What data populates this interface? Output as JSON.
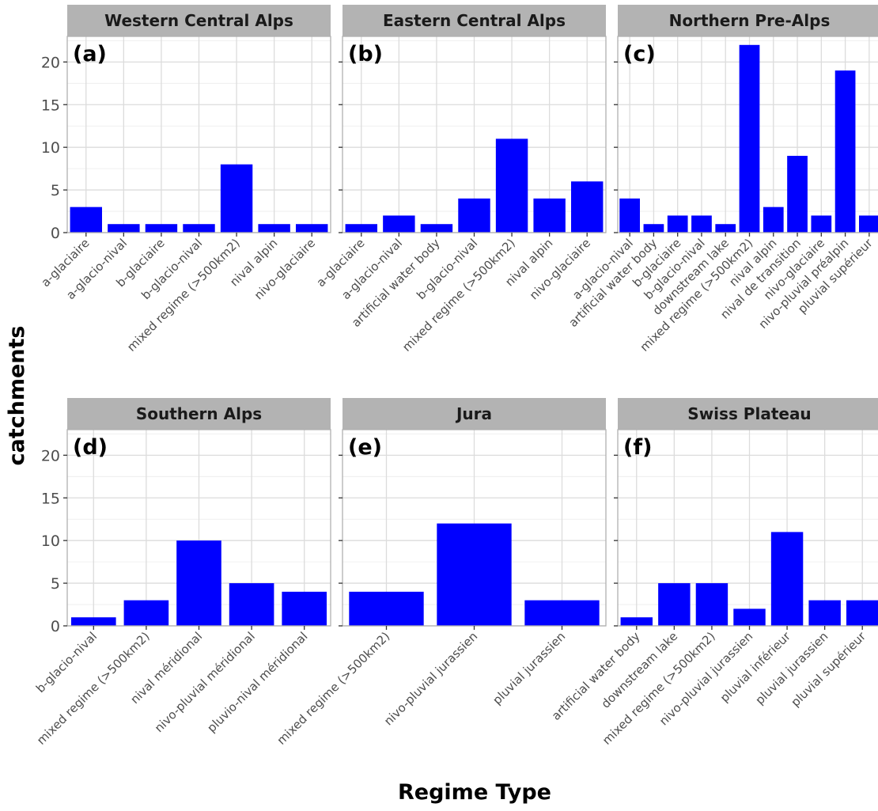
{
  "figure": {
    "ylabel": "catchments",
    "xlabel": "Regime Type"
  },
  "chart_data": [
    {
      "type": "bar",
      "title": "Western Central Alps",
      "panel_label": "(a)",
      "categories": [
        "a-glaciaire",
        "a-glacio-nival",
        "b-glaciaire",
        "b-glacio-nival",
        "mixed regime (>500km2)",
        "nival alpin",
        "nivo-glaciaire"
      ],
      "values": [
        3,
        1,
        1,
        1,
        8,
        1,
        1
      ],
      "ylim": [
        0,
        23
      ],
      "yticks": [
        0,
        5,
        10,
        15,
        20
      ],
      "grid": true,
      "color": "#0000ff"
    },
    {
      "type": "bar",
      "title": "Eastern Central Alps",
      "panel_label": "(b)",
      "categories": [
        "a-glaciaire",
        "a-glacio-nival",
        "artificial water body",
        "b-glacio-nival",
        "mixed regime (>500km2)",
        "nival alpin",
        "nivo-glaciaire"
      ],
      "values": [
        1,
        2,
        1,
        4,
        11,
        4,
        6
      ],
      "ylim": [
        0,
        23
      ],
      "yticks": [
        0,
        5,
        10,
        15,
        20
      ],
      "grid": true,
      "color": "#0000ff"
    },
    {
      "type": "bar",
      "title": "Northern Pre-Alps",
      "panel_label": "(c)",
      "categories": [
        "a-glacio-nival",
        "artificial water body",
        "b-glaciaire",
        "b-glacio-nival",
        "downstream lake",
        "mixed regime (>500km2)",
        "nival alpin",
        "nival de transition",
        "nivo-glaciaire",
        "nivo-pluvial préalpin",
        "pluvial supérieur"
      ],
      "values": [
        4,
        1,
        2,
        2,
        1,
        22,
        3,
        9,
        2,
        19,
        2
      ],
      "ylim": [
        0,
        23
      ],
      "yticks": [
        0,
        5,
        10,
        15,
        20
      ],
      "grid": true,
      "color": "#0000ff"
    },
    {
      "type": "bar",
      "title": "Southern Alps",
      "panel_label": "(d)",
      "categories": [
        "b-glacio-nival",
        "mixed regime (>500km2)",
        "nival méridional",
        "nivo-pluvial méridional",
        "pluvio-nival méridional"
      ],
      "values": [
        1,
        3,
        10,
        5,
        4
      ],
      "ylim": [
        0,
        23
      ],
      "yticks": [
        0,
        5,
        10,
        15,
        20
      ],
      "grid": true,
      "color": "#0000ff"
    },
    {
      "type": "bar",
      "title": "Jura",
      "panel_label": "(e)",
      "categories": [
        "mixed regime (>500km2)",
        "nivo-pluvial jurassien",
        "pluvial jurassien"
      ],
      "values": [
        4,
        12,
        3
      ],
      "ylim": [
        0,
        23
      ],
      "yticks": [
        0,
        5,
        10,
        15,
        20
      ],
      "grid": true,
      "color": "#0000ff"
    },
    {
      "type": "bar",
      "title": "Swiss Plateau",
      "panel_label": "(f)",
      "categories": [
        "artificial water body",
        "downstream lake",
        "mixed regime (>500km2)",
        "nivo-pluvial jurassien",
        "pluvial inférieur",
        "pluvial jurassien",
        "pluvial supérieur"
      ],
      "values": [
        1,
        5,
        5,
        2,
        11,
        3,
        3
      ],
      "ylim": [
        0,
        23
      ],
      "yticks": [
        0,
        5,
        10,
        15,
        20
      ],
      "grid": true,
      "color": "#0000ff"
    }
  ]
}
